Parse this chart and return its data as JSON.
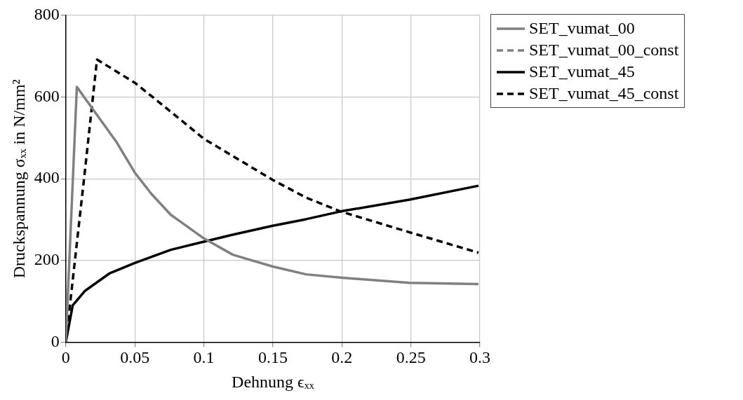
{
  "chart_data": {
    "type": "line",
    "xlabel": "Dehnung ϵₓₓ",
    "ylabel": "Druckspannung σₓₓ in N/mm²",
    "xlim": [
      0,
      0.3
    ],
    "xticks": [
      0,
      0.05,
      0.1,
      0.15,
      0.2,
      0.25,
      0.3
    ],
    "ylim": [
      0,
      800
    ],
    "yticks": [
      0,
      200,
      400,
      600,
      800
    ],
    "grid": true,
    "legend": "top right",
    "marker": "none",
    "series": [
      {
        "name": "SET_vumat_00",
        "color": "#808080",
        "line_style": "solid",
        "x": [
          0,
          0.008,
          0.0137,
          0.0369,
          0.05,
          0.062,
          0.076,
          0.1,
          0.121,
          0.15,
          0.174,
          0.199,
          0.249,
          0.299
        ],
        "values": [
          0,
          625,
          598,
          489,
          415,
          363,
          312,
          254,
          214,
          185,
          166,
          158,
          145,
          142
        ]
      },
      {
        "name": "SET_vumat_00_const",
        "color": "#808080",
        "line_style": "dashed"
      },
      {
        "name": "SET_vumat_45",
        "color": "#000000",
        "line_style": "solid",
        "x": [
          0,
          0.005,
          0.0137,
          0.0315,
          0.05,
          0.076,
          0.1,
          0.121,
          0.15,
          0.174,
          0.199,
          0.249,
          0.299
        ],
        "values": [
          0,
          90,
          125,
          168,
          194,
          226,
          246,
          263,
          285,
          301,
          320,
          349,
          383
        ]
      },
      {
        "name": "SET_vumat_45_const",
        "color": "#000000",
        "line_style": "dashed",
        "x": [
          0,
          0.0137,
          0.0226,
          0.05,
          0.067,
          0.1,
          0.15,
          0.174,
          0.199,
          0.249,
          0.299
        ],
        "values": [
          0,
          415,
          692,
          635,
          589,
          498,
          397,
          354,
          320,
          269,
          219
        ]
      }
    ]
  }
}
